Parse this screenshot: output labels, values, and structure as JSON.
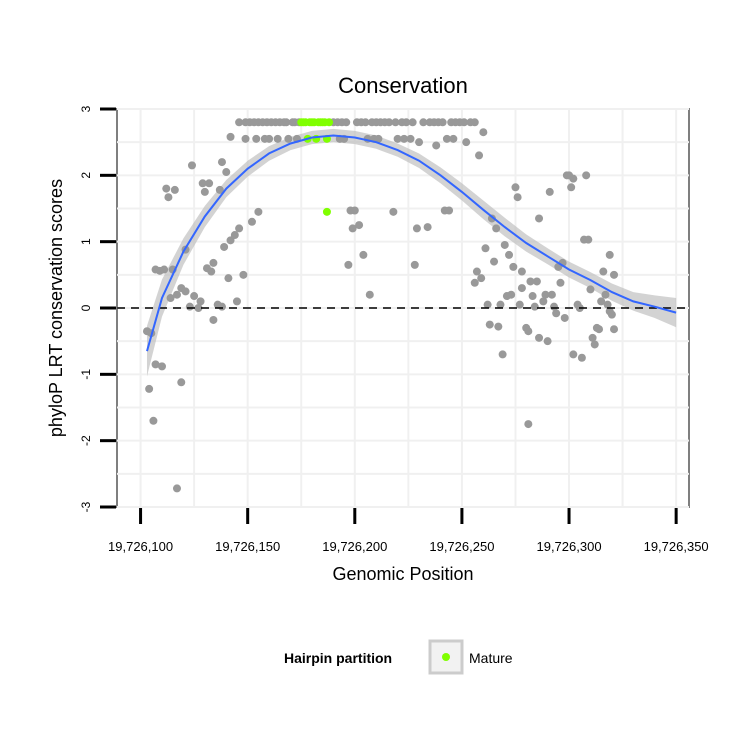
{
  "chart_data": {
    "type": "scatter",
    "title": "Conservation",
    "xlabel": "Genomic Position",
    "ylabel": "phyloP LRT conservation scores",
    "xlim": [
      19726089,
      19726356
    ],
    "ylim": [
      -3,
      3
    ],
    "x_ticks": [
      19726100,
      19726150,
      19726200,
      19726250,
      19726300,
      19726350
    ],
    "x_tick_labels": [
      "19,726,100",
      "19,726,150",
      "19,726,200",
      "19,726,250",
      "19,726,300",
      "19,726,350"
    ],
    "y_ticks": [
      -3,
      -2,
      -1,
      0,
      1,
      2,
      3
    ],
    "y_tick_labels": [
      "-3",
      "-2",
      "-1",
      "0",
      "1",
      "2",
      "3"
    ],
    "grid": true,
    "reference_line": {
      "y": 0,
      "style": "dashed"
    },
    "legend": {
      "title": "Hairpin partition",
      "position": "bottom",
      "entries": [
        {
          "label": "Mature",
          "color": "#80ff00"
        }
      ]
    },
    "colors": {
      "points": "#999999",
      "mature": "#80ff00",
      "smooth": "#3366ff",
      "ribbon": "#bbbbbb"
    },
    "series": [
      {
        "name": "Hairpin",
        "color": "#999999",
        "points": [
          [
            19726103,
            -0.35
          ],
          [
            19726104,
            -1.22
          ],
          [
            19726105,
            -0.38
          ],
          [
            19726106,
            -1.7
          ],
          [
            19726107,
            -0.85
          ],
          [
            19726107,
            0.58
          ],
          [
            19726109,
            0.56
          ],
          [
            19726110,
            -0.88
          ],
          [
            19726111,
            0.58
          ],
          [
            19726112,
            1.8
          ],
          [
            19726113,
            1.67
          ],
          [
            19726114,
            0.15
          ],
          [
            19726115,
            0.58
          ],
          [
            19726116,
            1.78
          ],
          [
            19726117,
            0.2
          ],
          [
            19726117,
            -2.72
          ],
          [
            19726119,
            0.3
          ],
          [
            19726119,
            -1.12
          ],
          [
            19726121,
            0.88
          ],
          [
            19726121,
            0.25
          ],
          [
            19726123,
            0.02
          ],
          [
            19726124,
            2.15
          ],
          [
            19726125,
            0.18
          ],
          [
            19726127,
            0.0
          ],
          [
            19726128,
            0.1
          ],
          [
            19726129,
            1.88
          ],
          [
            19726130,
            1.75
          ],
          [
            19726131,
            0.6
          ],
          [
            19726132,
            1.88
          ],
          [
            19726133,
            0.55
          ],
          [
            19726134,
            -0.18
          ],
          [
            19726134,
            0.68
          ],
          [
            19726136,
            0.05
          ],
          [
            19726137,
            1.78
          ],
          [
            19726138,
            0.02
          ],
          [
            19726138,
            2.2
          ],
          [
            19726139,
            0.92
          ],
          [
            19726140,
            2.05
          ],
          [
            19726141,
            0.45
          ],
          [
            19726142,
            1.02
          ],
          [
            19726142,
            2.58
          ],
          [
            19726144,
            1.1
          ],
          [
            19726145,
            0.1
          ],
          [
            19726146,
            1.2
          ],
          [
            19726146,
            2.8
          ],
          [
            19726148,
            0.5
          ],
          [
            19726149,
            2.8
          ],
          [
            19726149,
            2.55
          ],
          [
            19726151,
            2.8
          ],
          [
            19726152,
            1.3
          ],
          [
            19726153,
            2.8
          ],
          [
            19726154,
            2.55
          ],
          [
            19726155,
            1.45
          ],
          [
            19726155,
            2.8
          ],
          [
            19726157,
            2.8
          ],
          [
            19726158,
            2.55
          ],
          [
            19726159,
            2.8
          ],
          [
            19726160,
            2.55
          ],
          [
            19726161,
            2.8
          ],
          [
            19726163,
            2.8
          ],
          [
            19726164,
            2.55
          ],
          [
            19726165,
            2.8
          ],
          [
            19726167,
            2.8
          ],
          [
            19726168,
            2.8
          ],
          [
            19726169,
            2.55
          ],
          [
            19726171,
            2.8
          ],
          [
            19726172,
            2.8
          ],
          [
            19726173,
            2.55
          ],
          [
            19726174,
            2.8
          ],
          [
            19726190,
            2.8
          ],
          [
            19726192,
            2.8
          ],
          [
            19726193,
            2.55
          ],
          [
            19726194,
            2.8
          ],
          [
            19726195,
            2.55
          ],
          [
            19726196,
            2.8
          ],
          [
            19726197,
            0.65
          ],
          [
            19726198,
            1.47
          ],
          [
            19726199,
            1.2
          ],
          [
            19726200,
            1.47
          ],
          [
            19726201,
            2.8
          ],
          [
            19726202,
            1.25
          ],
          [
            19726203,
            2.8
          ],
          [
            19726204,
            0.8
          ],
          [
            19726205,
            2.8
          ],
          [
            19726206,
            2.55
          ],
          [
            19726207,
            0.2
          ],
          [
            19726208,
            2.8
          ],
          [
            19726209,
            2.55
          ],
          [
            19726210,
            2.8
          ],
          [
            19726211,
            2.55
          ],
          [
            19726212,
            2.8
          ],
          [
            19726214,
            2.8
          ],
          [
            19726216,
            2.8
          ],
          [
            19726218,
            1.45
          ],
          [
            19726219,
            2.8
          ],
          [
            19726220,
            2.55
          ],
          [
            19726222,
            2.8
          ],
          [
            19726223,
            2.55
          ],
          [
            19726224,
            2.8
          ],
          [
            19726226,
            2.55
          ],
          [
            19726227,
            2.8
          ],
          [
            19726228,
            0.65
          ],
          [
            19726229,
            1.2
          ],
          [
            19726230,
            2.5
          ],
          [
            19726232,
            2.8
          ],
          [
            19726234,
            1.22
          ],
          [
            19726235,
            2.8
          ],
          [
            19726237,
            2.8
          ],
          [
            19726238,
            2.45
          ],
          [
            19726239,
            2.8
          ],
          [
            19726241,
            2.8
          ],
          [
            19726242,
            1.47
          ],
          [
            19726243,
            2.55
          ],
          [
            19726244,
            1.47
          ],
          [
            19726245,
            2.8
          ],
          [
            19726246,
            2.55
          ],
          [
            19726247,
            2.8
          ],
          [
            19726249,
            2.8
          ],
          [
            19726251,
            2.8
          ],
          [
            19726252,
            2.5
          ],
          [
            19726254,
            2.8
          ],
          [
            19726256,
            0.38
          ],
          [
            19726256,
            2.8
          ],
          [
            19726257,
            0.55
          ],
          [
            19726258,
            2.3
          ],
          [
            19726259,
            0.45
          ],
          [
            19726260,
            2.65
          ],
          [
            19726261,
            0.9
          ],
          [
            19726262,
            0.05
          ],
          [
            19726263,
            -0.25
          ],
          [
            19726264,
            1.35
          ],
          [
            19726265,
            0.7
          ],
          [
            19726266,
            1.2
          ],
          [
            19726267,
            -0.28
          ],
          [
            19726268,
            0.05
          ],
          [
            19726269,
            -0.7
          ],
          [
            19726270,
            0.95
          ],
          [
            19726271,
            0.18
          ],
          [
            19726272,
            0.8
          ],
          [
            19726273,
            0.2
          ],
          [
            19726274,
            0.62
          ],
          [
            19726275,
            1.82
          ],
          [
            19726276,
            1.67
          ],
          [
            19726277,
            0.05
          ],
          [
            19726278,
            0.55
          ],
          [
            19726278,
            0.3
          ],
          [
            19726280,
            -0.3
          ],
          [
            19726281,
            -1.75
          ],
          [
            19726281,
            -0.35
          ],
          [
            19726282,
            0.4
          ],
          [
            19726283,
            0.18
          ],
          [
            19726284,
            0.02
          ],
          [
            19726285,
            0.4
          ],
          [
            19726286,
            -0.45
          ],
          [
            19726286,
            1.35
          ],
          [
            19726288,
            0.1
          ],
          [
            19726289,
            0.2
          ],
          [
            19726290,
            -0.5
          ],
          [
            19726291,
            1.75
          ],
          [
            19726292,
            0.2
          ],
          [
            19726293,
            0.02
          ],
          [
            19726294,
            -0.08
          ],
          [
            19726295,
            0.62
          ],
          [
            19726296,
            0.38
          ],
          [
            19726297,
            0.68
          ],
          [
            19726298,
            -0.15
          ],
          [
            19726299,
            2.0
          ],
          [
            19726300,
            2.0
          ],
          [
            19726301,
            1.82
          ],
          [
            19726302,
            -0.7
          ],
          [
            19726302,
            1.95
          ],
          [
            19726304,
            0.05
          ],
          [
            19726305,
            0.0
          ],
          [
            19726306,
            -0.75
          ],
          [
            19726307,
            1.03
          ],
          [
            19726308,
            2.0
          ],
          [
            19726309,
            1.03
          ],
          [
            19726310,
            0.28
          ],
          [
            19726311,
            -0.45
          ],
          [
            19726312,
            -0.55
          ],
          [
            19726313,
            -0.3
          ],
          [
            19726314,
            -0.32
          ],
          [
            19726315,
            0.1
          ],
          [
            19726316,
            0.55
          ],
          [
            19726317,
            0.2
          ],
          [
            19726318,
            0.05
          ],
          [
            19726319,
            0.8
          ],
          [
            19726319,
            -0.05
          ],
          [
            19726320,
            -0.1
          ],
          [
            19726321,
            0.5
          ],
          [
            19726321,
            -0.32
          ]
        ]
      },
      {
        "name": "Mature",
        "color": "#80ff00",
        "points": [
          [
            19726175,
            2.8
          ],
          [
            19726176,
            2.8
          ],
          [
            19726177,
            2.8
          ],
          [
            19726178,
            2.55
          ],
          [
            19726179,
            2.8
          ],
          [
            19726180,
            2.8
          ],
          [
            19726181,
            2.8
          ],
          [
            19726182,
            2.55
          ],
          [
            19726183,
            2.8
          ],
          [
            19726184,
            2.8
          ],
          [
            19726185,
            2.8
          ],
          [
            19726186,
            2.8
          ],
          [
            19726187,
            2.55
          ],
          [
            19726187,
            1.45
          ],
          [
            19726188,
            2.8
          ]
        ]
      }
    ],
    "smooth": {
      "x": [
        19726103,
        19726110,
        19726120,
        19726130,
        19726140,
        19726150,
        19726160,
        19726170,
        19726180,
        19726190,
        19726200,
        19726210,
        19726220,
        19726230,
        19726240,
        19726250,
        19726260,
        19726270,
        19726280,
        19726290,
        19726300,
        19726310,
        19726320,
        19726330,
        19726340,
        19726350
      ],
      "y": [
        -0.65,
        0.15,
        0.85,
        1.38,
        1.8,
        2.1,
        2.33,
        2.48,
        2.57,
        2.6,
        2.57,
        2.5,
        2.38,
        2.22,
        2.0,
        1.75,
        1.48,
        1.22,
        0.98,
        0.78,
        0.58,
        0.42,
        0.24,
        0.1,
        0.02,
        -0.07
      ],
      "band": [
        0.38,
        0.28,
        0.2,
        0.16,
        0.13,
        0.12,
        0.11,
        0.1,
        0.1,
        0.1,
        0.1,
        0.1,
        0.1,
        0.11,
        0.12,
        0.13,
        0.14,
        0.14,
        0.13,
        0.12,
        0.12,
        0.12,
        0.13,
        0.14,
        0.17,
        0.22
      ]
    }
  }
}
